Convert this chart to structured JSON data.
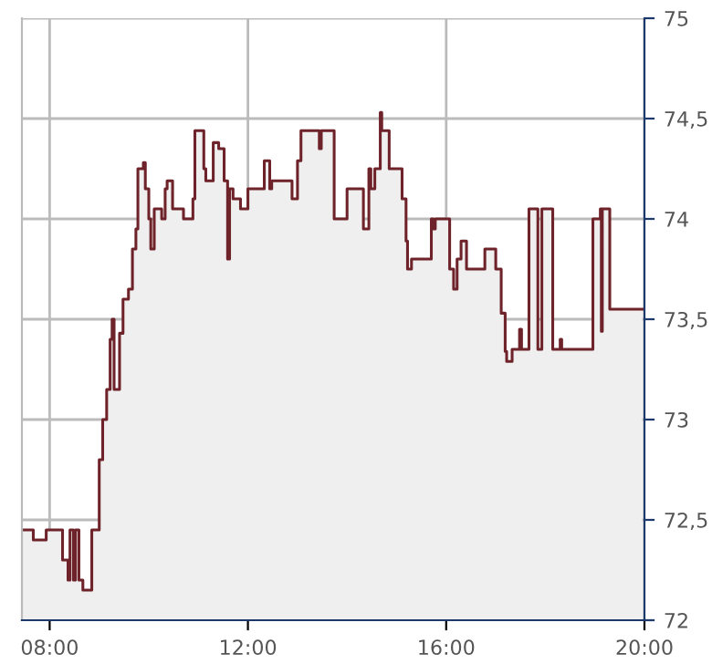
{
  "chart_data": {
    "type": "step",
    "x": [
      7.44,
      7.67,
      7.93,
      8.15,
      8.26,
      8.37,
      8.41,
      8.48,
      8.52,
      8.59,
      8.67,
      8.85,
      9.0,
      9.07,
      9.15,
      9.22,
      9.26,
      9.3,
      9.41,
      9.48,
      9.59,
      9.67,
      9.74,
      9.78,
      9.89,
      9.93,
      10.0,
      10.04,
      10.11,
      10.26,
      10.33,
      10.37,
      10.48,
      10.7,
      10.89,
      10.93,
      11.11,
      11.15,
      11.3,
      11.41,
      11.52,
      11.59,
      11.63,
      11.7,
      11.85,
      12.0,
      12.33,
      12.44,
      12.48,
      12.89,
      13.0,
      13.07,
      13.44,
      13.48,
      13.74,
      14.0,
      14.33,
      14.44,
      14.48,
      14.56,
      14.67,
      14.7,
      14.85,
      15.11,
      15.19,
      15.22,
      15.3,
      15.7,
      15.74,
      15.78,
      16.07,
      16.15,
      16.22,
      16.3,
      16.41,
      16.78,
      17.0,
      17.11,
      17.19,
      17.22,
      17.33,
      17.48,
      17.52,
      17.67,
      17.85,
      17.93,
      18.15,
      18.3,
      18.33,
      18.96,
      19.11,
      19.13,
      19.15,
      19.3,
      19.96
    ],
    "series": [
      {
        "type": "area",
        "color": "#efefef",
        "values": [
          72.45,
          72.4,
          72.45,
          72.45,
          72.3,
          72.2,
          72.45,
          72.2,
          72.45,
          72.2,
          72.15,
          72.45,
          72.8,
          73.0,
          73.15,
          73.4,
          73.5,
          73.15,
          73.43,
          73.6,
          73.65,
          73.85,
          73.95,
          74.25,
          74.28,
          74.15,
          74.0,
          73.85,
          74.05,
          74.0,
          74.15,
          74.19,
          74.05,
          74.0,
          74.1,
          74.44,
          74.25,
          74.19,
          74.38,
          74.35,
          74.19,
          73.8,
          74.15,
          74.1,
          74.05,
          74.15,
          74.29,
          74.15,
          74.19,
          74.1,
          74.29,
          74.44,
          74.35,
          74.44,
          74.0,
          74.15,
          73.95,
          74.25,
          74.15,
          74.25,
          74.53,
          74.44,
          74.25,
          74.1,
          73.89,
          73.75,
          73.8,
          74.0,
          73.95,
          74.0,
          73.75,
          73.65,
          73.8,
          73.89,
          73.75,
          73.85,
          73.75,
          73.53,
          73.34,
          73.29,
          73.35,
          73.45,
          73.35,
          74.05,
          73.35,
          74.05,
          73.35,
          73.4,
          73.35,
          74.0,
          74.05,
          73.44,
          74.05,
          73.55,
          73.55
        ]
      },
      {
        "color": "#6e2229",
        "values": [
          72.45,
          72.4,
          72.45,
          72.45,
          72.3,
          72.2,
          72.45,
          72.2,
          72.45,
          72.2,
          72.15,
          72.45,
          72.8,
          73.0,
          73.15,
          73.4,
          73.5,
          73.15,
          73.43,
          73.6,
          73.65,
          73.85,
          73.95,
          74.25,
          74.28,
          74.15,
          74.0,
          73.85,
          74.05,
          74.0,
          74.15,
          74.19,
          74.05,
          74.0,
          74.1,
          74.44,
          74.25,
          74.19,
          74.38,
          74.35,
          74.19,
          73.8,
          74.15,
          74.1,
          74.05,
          74.15,
          74.29,
          74.15,
          74.19,
          74.1,
          74.29,
          74.44,
          74.35,
          74.44,
          74.0,
          74.15,
          73.95,
          74.25,
          74.15,
          74.25,
          74.53,
          74.44,
          74.25,
          74.1,
          73.89,
          73.75,
          73.8,
          74.0,
          73.95,
          74.0,
          73.75,
          73.65,
          73.8,
          73.89,
          73.75,
          73.85,
          73.75,
          73.53,
          73.34,
          73.29,
          73.35,
          73.45,
          73.35,
          74.05,
          73.35,
          74.05,
          73.35,
          73.4,
          73.35,
          74.0,
          74.05,
          73.44,
          74.05,
          73.55,
          73.55
        ]
      }
    ],
    "xlim": [
      7.44,
      20
    ],
    "xticks": [
      {
        "value": 8,
        "label": "08:00"
      },
      {
        "value": 12,
        "label": "12:00"
      },
      {
        "value": 16,
        "label": "16:00"
      },
      {
        "value": 20,
        "label": "20:00"
      }
    ],
    "ylim": [
      72,
      75
    ],
    "yticks": [
      72,
      {
        "value": 72.5,
        "label": "72,5"
      },
      73,
      {
        "value": 73.5,
        "label": "73,5"
      },
      74,
      {
        "value": 74.5,
        "label": "74,5"
      },
      75
    ],
    "grid": true
  }
}
